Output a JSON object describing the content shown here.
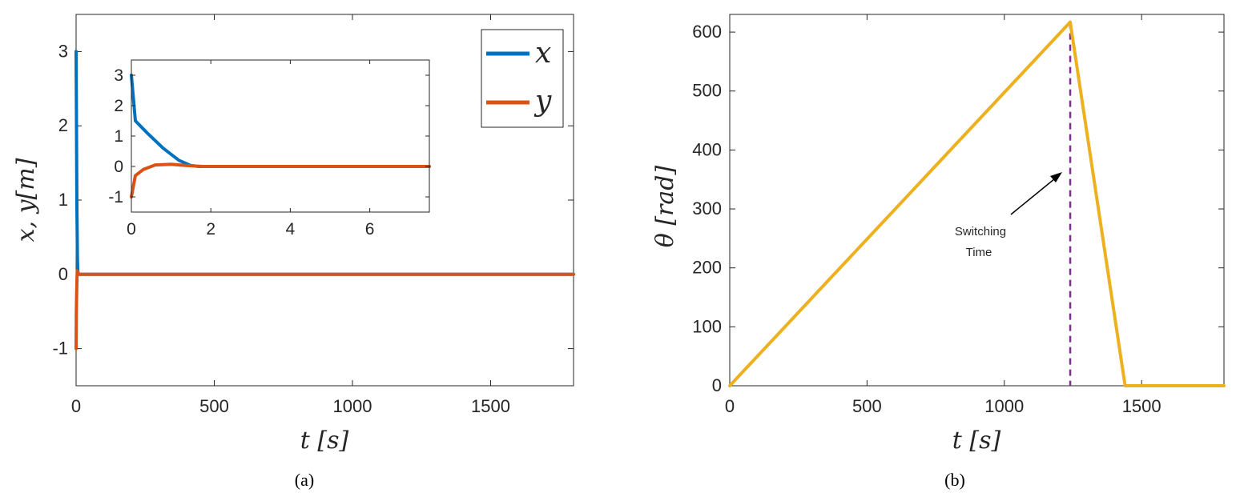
{
  "chart_data": [
    {
      "type": "line",
      "panel_label": "(a)",
      "xlabel": "t [s]",
      "ylabel": "x, y[m]",
      "xlim": [
        0,
        1800
      ],
      "ylim": [
        -1.5,
        3.5
      ],
      "xticks": [
        "0",
        "500",
        "1000",
        "1500"
      ],
      "yticks": [
        "-1",
        "0",
        "1",
        "2",
        "3"
      ],
      "legend": {
        "position": "top-right"
      },
      "series": [
        {
          "name": "x",
          "color": "#0072BD",
          "x": [
            0,
            1,
            2,
            3,
            4,
            5,
            6,
            8,
            10,
            1800
          ],
          "y": [
            3,
            2.4,
            1.5,
            0.9,
            0.5,
            0.2,
            0.05,
            0,
            0,
            0
          ]
        },
        {
          "name": "y",
          "color": "#D95319",
          "x": [
            0,
            1,
            2,
            3,
            4,
            6,
            10,
            1800
          ],
          "y": [
            -1,
            -0.5,
            -0.25,
            -0.1,
            0.05,
            0.03,
            0,
            0
          ]
        }
      ],
      "inset": {
        "xlim": [
          0,
          7.5
        ],
        "ylim": [
          -1.5,
          3.5
        ],
        "xticks": [
          "0",
          "2",
          "4",
          "6"
        ],
        "yticks": [
          "-1",
          "0",
          "1",
          "2",
          "3"
        ],
        "series": [
          {
            "name": "x",
            "color": "#0072BD",
            "x": [
              0,
              0.1,
              0.4,
              0.8,
              1.2,
              1.5,
              1.7,
              2.5,
              7.5
            ],
            "y": [
              3,
              1.5,
              1.1,
              0.6,
              0.2,
              0.03,
              0,
              0,
              0
            ]
          },
          {
            "name": "y",
            "color": "#D95319",
            "x": [
              0,
              0.1,
              0.3,
              0.6,
              1.0,
              1.4,
              1.8,
              2.5,
              7.5
            ],
            "y": [
              -1,
              -0.3,
              -0.1,
              0.05,
              0.07,
              0.03,
              0,
              0,
              0
            ]
          }
        ]
      }
    },
    {
      "type": "line",
      "panel_label": "(b)",
      "xlabel": "t [s]",
      "ylabel": "θ [rad]",
      "xlim": [
        0,
        1800
      ],
      "ylim": [
        0,
        630
      ],
      "xticks": [
        "0",
        "500",
        "1000",
        "1500"
      ],
      "yticks": [
        "0",
        "100",
        "200",
        "300",
        "400",
        "500",
        "600"
      ],
      "series": [
        {
          "name": "",
          "color": "#EDB120",
          "x": [
            0,
            1240,
            1440,
            1800
          ],
          "y": [
            0,
            617,
            0,
            0
          ]
        }
      ],
      "switching_line": {
        "x": 1240,
        "color": "#7E2F8E"
      },
      "annotation": {
        "line1": "Switching",
        "line2": "Time"
      }
    }
  ]
}
